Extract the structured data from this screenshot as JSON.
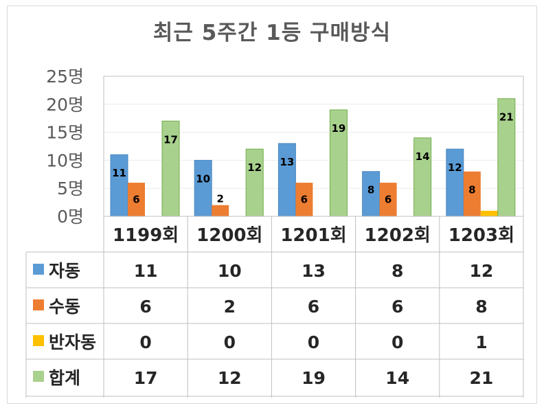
{
  "chart_data": {
    "type": "bar",
    "title": "최근 5주간 1등 구매방식",
    "categories": [
      "1199회",
      "1200회",
      "1201회",
      "1202회",
      "1203회"
    ],
    "ylim": [
      0,
      25
    ],
    "yticks": [
      "0명",
      "5명",
      "10명",
      "15명",
      "20명",
      "25명"
    ],
    "grid": true,
    "data_table": true,
    "series": [
      {
        "name": "자동",
        "values": [
          11,
          10,
          13,
          8,
          12
        ],
        "color": "#5b9bd5",
        "labels": [
          "11",
          "10",
          "13",
          "8",
          "12"
        ]
      },
      {
        "name": "수동",
        "values": [
          6,
          2,
          6,
          6,
          8
        ],
        "color": "#ed7d31",
        "labels": [
          "6",
          "2",
          "6",
          "6",
          "8"
        ]
      },
      {
        "name": "반자동",
        "values": [
          0,
          0,
          0,
          0,
          1
        ],
        "color": "#ffc000",
        "labels": [
          "",
          "",
          "",
          "",
          ""
        ]
      },
      {
        "name": "합계",
        "values": [
          17,
          12,
          19,
          14,
          21
        ],
        "color": "#a9d18e",
        "labels": [
          "17",
          "12",
          "19",
          "14",
          "21"
        ]
      }
    ]
  }
}
